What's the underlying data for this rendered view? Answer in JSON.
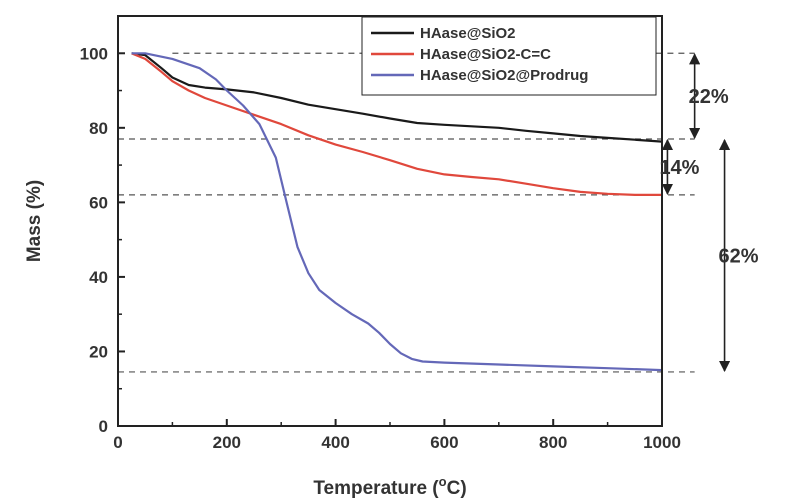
{
  "chart_data": {
    "type": "line",
    "xlabel": "Temperature (",
    "xlabel_sup": "o",
    "xlabel_unit": "C)",
    "ylabel": "Mass (%)",
    "xlim": [
      0,
      1000
    ],
    "ylim": [
      0,
      110
    ],
    "xticks": [
      "0",
      "200",
      "400",
      "600",
      "800",
      "1000"
    ],
    "yticks": [
      "0",
      "20",
      "40",
      "60",
      "80",
      "100"
    ],
    "legend_position": "top-right",
    "series": [
      {
        "name": "HAase@SiO2",
        "color": "#1a1a1a",
        "x": [
          25,
          50,
          80,
          100,
          130,
          160,
          200,
          250,
          300,
          350,
          400,
          450,
          500,
          550,
          600,
          650,
          700,
          750,
          800,
          850,
          900,
          950,
          1000
        ],
        "y": [
          100,
          99.5,
          96,
          93.5,
          91.5,
          90.8,
          90.3,
          89.5,
          88,
          86.2,
          85,
          83.8,
          82.5,
          81.3,
          80.8,
          80.4,
          80,
          79.2,
          78.5,
          77.8,
          77.3,
          76.8,
          76.3
        ]
      },
      {
        "name": "HAase@SiO2-C=C",
        "color": "#e0483c",
        "x": [
          25,
          50,
          80,
          100,
          130,
          160,
          200,
          250,
          300,
          350,
          400,
          450,
          500,
          550,
          600,
          650,
          700,
          750,
          800,
          850,
          900,
          950,
          1000
        ],
        "y": [
          100,
          98.5,
          95,
          92.5,
          90,
          88,
          86,
          83.5,
          81,
          78,
          75.5,
          73.5,
          71.3,
          69,
          67.5,
          66.8,
          66.2,
          65,
          63.8,
          62.8,
          62.3,
          62,
          62
        ]
      },
      {
        "name": "HAase@SiO2@Prodrug",
        "color": "#6468b8",
        "x": [
          25,
          50,
          100,
          150,
          180,
          200,
          230,
          260,
          290,
          310,
          330,
          350,
          370,
          400,
          430,
          460,
          480,
          500,
          520,
          540,
          560,
          600,
          700,
          800,
          900,
          1000
        ],
        "y": [
          100,
          100,
          98.5,
          96,
          93,
          90,
          86,
          81,
          72,
          60,
          48,
          41,
          36.5,
          33,
          30,
          27.5,
          25,
          22,
          19.5,
          18,
          17.3,
          17,
          16.5,
          16,
          15.5,
          15
        ]
      }
    ],
    "reference_lines": [
      {
        "y": 100,
        "x_from": 100,
        "x_to": 1060
      },
      {
        "y": 77,
        "x_from": 0,
        "x_to": 1060
      },
      {
        "y": 62,
        "x_from": 0,
        "x_to": 1060
      },
      {
        "y": 14.5,
        "x_from": 0,
        "x_to": 1060
      }
    ],
    "annotations": [
      {
        "label": "22%",
        "y_top": 100,
        "y_bottom": 77,
        "x": 1060
      },
      {
        "label": "14%",
        "y_top": 77,
        "y_bottom": 62,
        "x": 1010
      },
      {
        "label": "62%",
        "y_top": 77,
        "y_bottom": 14.5,
        "x": 1115
      }
    ]
  }
}
